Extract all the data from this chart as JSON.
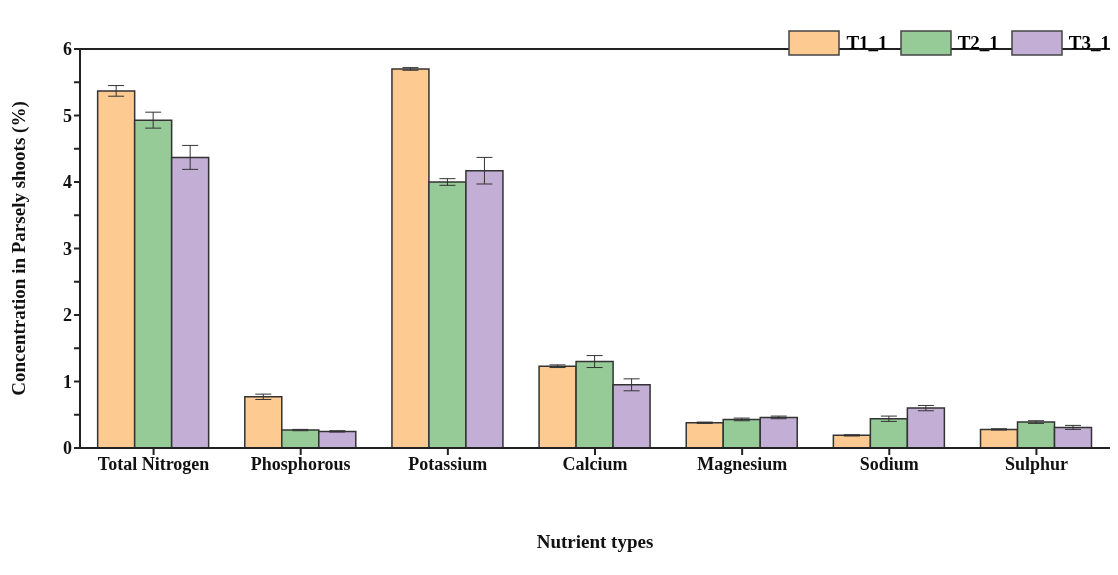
{
  "chart_data": {
    "type": "bar",
    "xlabel": "Nutrient types",
    "ylabel": "Concentration in Parsely shoots (%)",
    "categories": [
      "Total Nitrogen",
      "Phosphorous",
      "Potassium",
      "Calcium",
      "Magnesium",
      "Sodium",
      "Sulphur"
    ],
    "series": [
      {
        "name": "T1_1",
        "color": "#fdca92",
        "values": [
          5.37,
          0.77,
          5.7,
          1.23,
          0.38,
          0.19,
          0.28
        ],
        "errors": [
          0.08,
          0.04,
          0.02,
          0.02,
          0.01,
          0.01,
          0.01
        ]
      },
      {
        "name": "T2_1",
        "color": "#96cb98",
        "values": [
          4.93,
          0.27,
          4.0,
          1.3,
          0.43,
          0.44,
          0.39
        ],
        "errors": [
          0.12,
          0.01,
          0.05,
          0.09,
          0.02,
          0.04,
          0.02
        ]
      },
      {
        "name": "T3_1",
        "color": "#c3aed6",
        "values": [
          4.37,
          0.25,
          4.17,
          0.95,
          0.46,
          0.6,
          0.31
        ],
        "errors": [
          0.18,
          0.01,
          0.2,
          0.09,
          0.02,
          0.04,
          0.03
        ]
      }
    ],
    "ylim": [
      0,
      6
    ],
    "yticks": [
      0,
      {
        "value": 0.5,
        "label": null
      },
      1,
      {
        "value": 1.5,
        "label": null
      },
      2,
      {
        "value": 2.5,
        "label": null
      },
      3,
      {
        "value": 3.5,
        "label": null
      },
      4,
      {
        "value": 4.5,
        "label": null
      },
      5,
      {
        "value": 5.5,
        "label": null
      },
      6
    ],
    "legend": "top right",
    "grid": false
  }
}
